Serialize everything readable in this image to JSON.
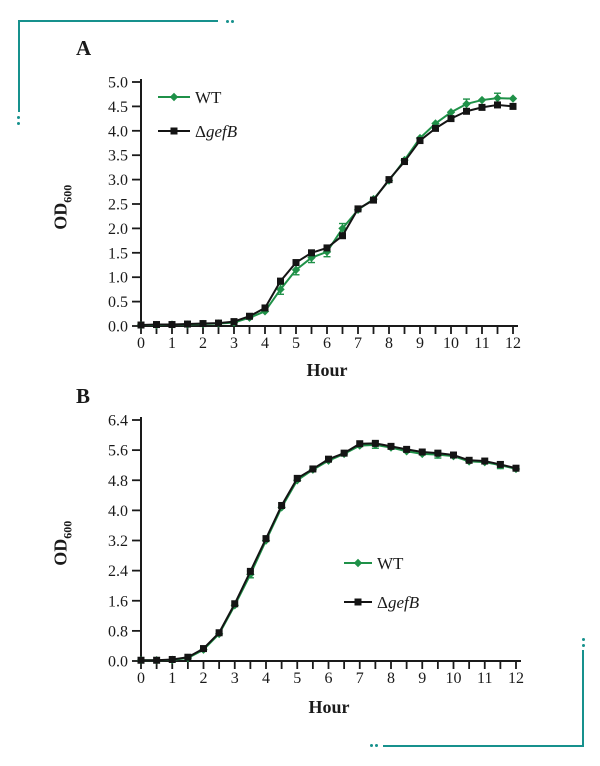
{
  "figure": {
    "background": "#ffffff",
    "accent_color": "#17918d",
    "text_color": "#1a1a1a"
  },
  "chart_data": [
    {
      "type": "line",
      "panel_label": "A",
      "xlabel": "Hour",
      "ylabel": "OD",
      "ylabel_subscript": "600",
      "xlim": [
        0,
        12
      ],
      "ylim": [
        0,
        5.0
      ],
      "x_minor_tick_step": 0.5,
      "grid": "off",
      "legend_position": "inside-top-left",
      "xtick_labels": [
        "0",
        "1",
        "2",
        "3",
        "4",
        "5",
        "6",
        "7",
        "8",
        "9",
        "10",
        "11",
        "12"
      ],
      "ytick_labels": [
        "0.0",
        "0.5",
        "1.0",
        "1.5",
        "2.0",
        "2.5",
        "3.0",
        "3.5",
        "4.0",
        "4.5",
        "5.0"
      ],
      "x": [
        0,
        0.5,
        1,
        1.5,
        2,
        2.5,
        3,
        3.5,
        4,
        4.5,
        5,
        5.5,
        6,
        6.5,
        7,
        7.5,
        8,
        8.5,
        9,
        9.5,
        10,
        10.5,
        11,
        11.5,
        12
      ],
      "series": [
        {
          "key": "wt",
          "name": "WT",
          "color": "#1f9148",
          "marker": "diamond",
          "values": [
            0.02,
            0.02,
            0.03,
            0.03,
            0.04,
            0.05,
            0.07,
            0.17,
            0.3,
            0.75,
            1.15,
            1.4,
            1.52,
            2.0,
            2.38,
            2.6,
            2.98,
            3.4,
            3.85,
            4.15,
            4.38,
            4.55,
            4.63,
            4.67,
            4.66
          ],
          "error_bars": {
            "x": [
              4.5,
              5,
              5.5,
              6,
              6.5,
              10.5,
              11.5
            ],
            "e": 0.1
          }
        },
        {
          "key": "gefb",
          "name": "ΔgefB",
          "name_prefix": "Δ",
          "name_italic": "gefB",
          "color": "#141414",
          "marker": "square",
          "values": [
            0.02,
            0.03,
            0.03,
            0.04,
            0.05,
            0.06,
            0.09,
            0.2,
            0.37,
            0.92,
            1.3,
            1.5,
            1.6,
            1.85,
            2.4,
            2.58,
            3.0,
            3.37,
            3.8,
            4.05,
            4.25,
            4.4,
            4.48,
            4.53,
            4.5
          ]
        }
      ]
    },
    {
      "type": "line",
      "panel_label": "B",
      "xlabel": "Hour",
      "ylabel": "OD",
      "ylabel_subscript": "600",
      "xlim": [
        0,
        12
      ],
      "ylim": [
        0,
        6.4
      ],
      "x_minor_tick_step": 0.5,
      "grid": "off",
      "legend_position": "inside-middle-right",
      "xtick_labels": [
        "0",
        "1",
        "2",
        "3",
        "4",
        "5",
        "6",
        "7",
        "8",
        "9",
        "10",
        "11",
        "12"
      ],
      "ytick_labels": [
        "0.0",
        "0.8",
        "1.6",
        "2.4",
        "3.2",
        "4.0",
        "4.8",
        "5.6",
        "6.4"
      ],
      "x": [
        0,
        0.5,
        1,
        1.5,
        2,
        2.5,
        3,
        3.5,
        4,
        4.5,
        5,
        5.5,
        6,
        6.5,
        7,
        7.5,
        8,
        8.5,
        9,
        9.5,
        10,
        10.5,
        11,
        11.5,
        12
      ],
      "series": [
        {
          "key": "wt",
          "name": "WT",
          "color": "#1f9148",
          "marker": "diamond",
          "values": [
            0.02,
            0.02,
            0.03,
            0.08,
            0.3,
            0.72,
            1.48,
            2.3,
            3.2,
            4.08,
            4.8,
            5.08,
            5.32,
            5.5,
            5.72,
            5.74,
            5.67,
            5.57,
            5.5,
            5.48,
            5.44,
            5.3,
            5.28,
            5.2,
            5.1
          ],
          "error_bars": {
            "x": [
              3.5,
              7.5,
              9.5,
              11.5
            ],
            "e": 0.09
          }
        },
        {
          "key": "gefb",
          "name": "ΔgefB",
          "name_prefix": "Δ",
          "name_italic": "gefB",
          "color": "#141414",
          "marker": "square",
          "values": [
            0.02,
            0.02,
            0.04,
            0.1,
            0.33,
            0.75,
            1.52,
            2.38,
            3.25,
            4.13,
            4.85,
            5.1,
            5.36,
            5.52,
            5.77,
            5.78,
            5.7,
            5.62,
            5.55,
            5.52,
            5.47,
            5.33,
            5.31,
            5.22,
            5.12
          ]
        }
      ]
    }
  ]
}
